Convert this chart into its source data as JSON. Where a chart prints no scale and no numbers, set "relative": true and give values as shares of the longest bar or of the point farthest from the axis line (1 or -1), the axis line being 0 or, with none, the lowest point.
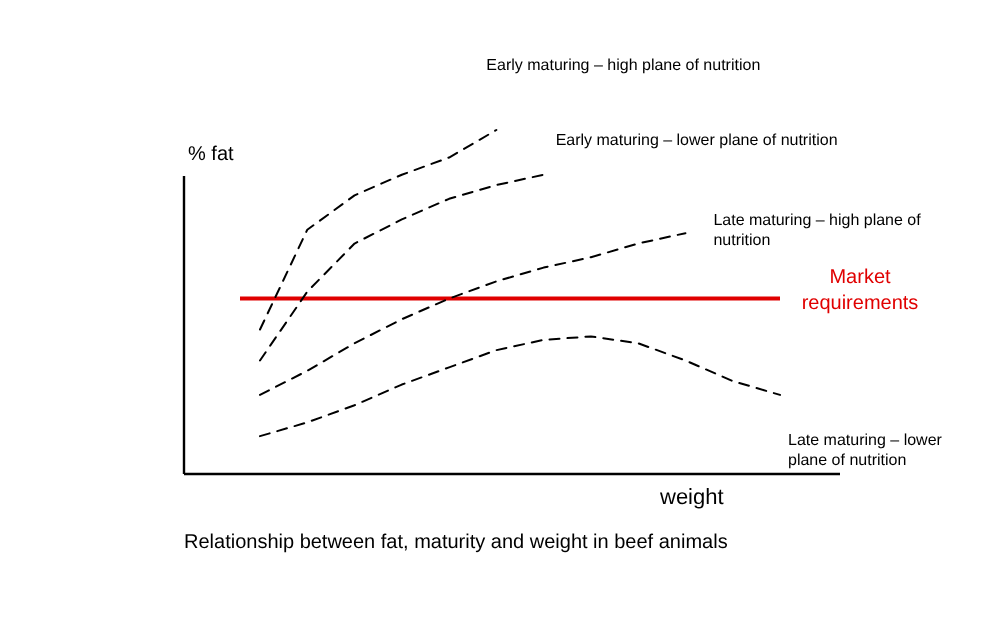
{
  "chart_data": {
    "type": "line",
    "title": "Relationship between fat, maturity and weight in beef animals",
    "xlabel": "weight",
    "ylabel": "% fat",
    "relative": true,
    "line_style": "dashed",
    "marker": "none",
    "categories": [
      null,
      null,
      null,
      null,
      null,
      null,
      null,
      null,
      null,
      null,
      null,
      null
    ],
    "series": [
      {
        "name": "Early maturing – high plane of nutrition",
        "color": "#000000",
        "values": [
          0.42,
          0.71,
          0.81,
          0.87,
          0.92,
          1,
          null,
          null,
          null,
          null,
          null,
          null
        ]
      },
      {
        "name": "Early maturing – lower plane of nutrition",
        "color": "#000000",
        "values": [
          0.33,
          0.53,
          0.67,
          0.74,
          0.8,
          0.84,
          0.87,
          null,
          null,
          null,
          null,
          null
        ]
      },
      {
        "name": "Late maturing – high plane of nutrition",
        "color": "#000000",
        "values": [
          0.23,
          0.3,
          0.38,
          0.45,
          0.51,
          0.56,
          0.6,
          0.63,
          0.67,
          0.7,
          null,
          null
        ]
      },
      {
        "name": "Late maturing – lower plane of nutrition",
        "color": "#000000",
        "values": [
          0.11,
          0.15,
          0.2,
          0.26,
          0.31,
          0.36,
          0.39,
          0.4,
          0.38,
          0.33,
          0.27,
          0.23
        ]
      }
    ],
    "ref_lines": [
      {
        "axis": "y",
        "value": 0.51,
        "label": "Market requirements",
        "color": "#e00000",
        "line_style": "solid"
      }
    ]
  }
}
